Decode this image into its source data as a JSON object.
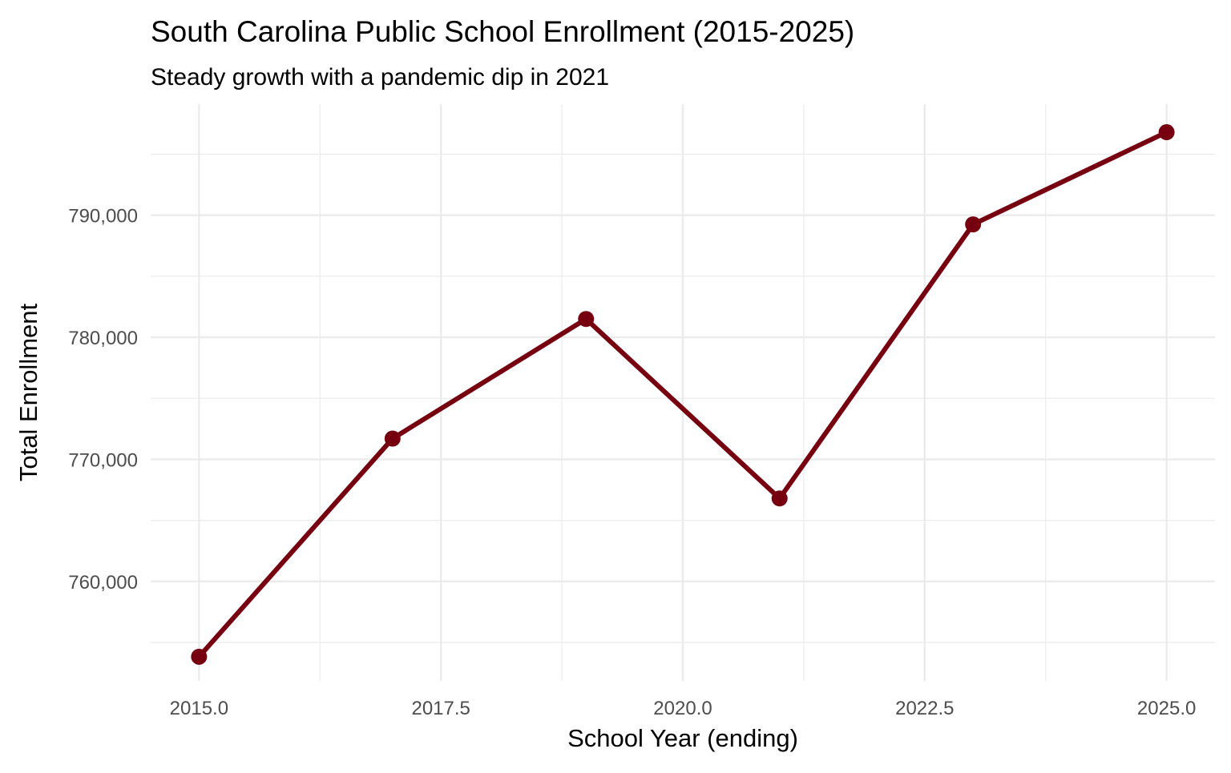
{
  "chart_data": {
    "type": "line",
    "title": "South Carolina Public School Enrollment (2015-2025)",
    "subtitle": "Steady growth with a pandemic dip in 2021",
    "xlabel": "School Year (ending)",
    "ylabel": "Total Enrollment",
    "x": [
      2015,
      2017,
      2019,
      2021,
      2023,
      2025
    ],
    "values": [
      753830,
      771700,
      781500,
      766800,
      789250,
      796800
    ],
    "xlim": [
      2014.5,
      2025.5
    ],
    "ylim": [
      751850,
      799100
    ],
    "x_ticks": [
      2015,
      2017.5,
      2020,
      2022.5,
      2025
    ],
    "x_tick_labels": [
      "2015.0",
      "2017.5",
      "2020.0",
      "2022.5",
      "2025.0"
    ],
    "y_ticks": [
      760000,
      770000,
      780000,
      790000
    ],
    "y_tick_labels": [
      "760,000",
      "770,000",
      "780,000",
      "790,000"
    ],
    "grid": true,
    "markers": true,
    "colors": {
      "series": "#760010",
      "grid": "#ebebeb",
      "tick_text": "#4d4d4d"
    }
  }
}
